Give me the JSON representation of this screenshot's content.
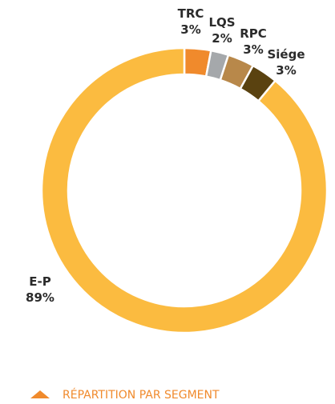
{
  "chart_data": {
    "type": "donut",
    "categories": [
      "TRC",
      "LQS",
      "RPC",
      "Siége",
      "E-P"
    ],
    "values": [
      3,
      2,
      3,
      3,
      89
    ],
    "value_labels": [
      "3%",
      "2%",
      "3%",
      "3%",
      "89%"
    ],
    "colors": [
      "#f08a2c",
      "#a5a8ab",
      "#b8884a",
      "#5a4210",
      "#fbbb40"
    ],
    "caption": "RÉPARTITION PAR SEGMENT"
  }
}
